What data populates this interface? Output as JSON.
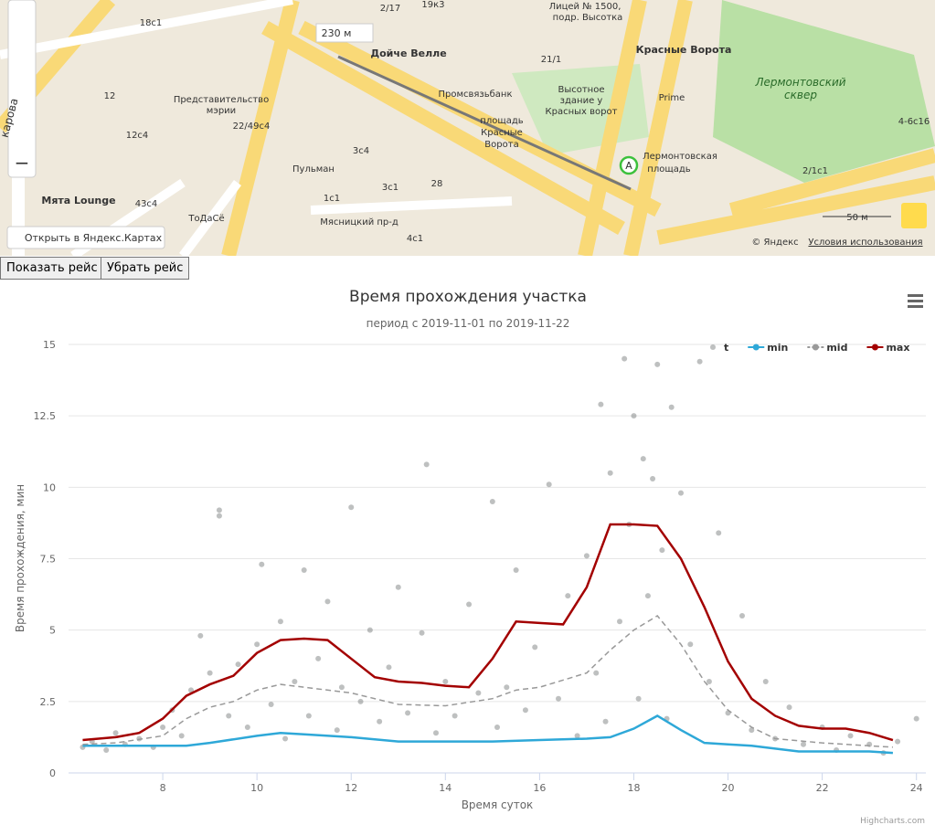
{
  "map": {
    "labels": [
      "Лицей № 1500,",
      "подр. Высотка",
      "Красные Ворота",
      "Дойче Велле",
      "Промсвязьбанк",
      "Представительство",
      "мэрии",
      "Высотное",
      "здание у",
      "Красных ворот",
      "Prime",
      "Лермонтовский",
      "сквер",
      "площадь",
      "Красные",
      "Ворота",
      "Лермонтовская",
      "площадь",
      "Пульман",
      "Мята Lounge",
      "ТоДаСё",
      "Мясницкий пр-д",
      "18с1",
      "12",
      "12с4",
      "22/49с4",
      "3с4",
      "1с1",
      "3с1",
      "28",
      "4с1",
      "43с4",
      "2/17",
      "19к3",
      "21/1",
      "4-6с16",
      "2/1с1",
      "карова"
    ],
    "distance": "230 м",
    "point": "A",
    "scale": "50 м",
    "open_link": "Открыть в Яндекс.Картах",
    "copyright": "© Яндекс",
    "terms": "Условия использования"
  },
  "buttons": [
    "Показать рейс",
    "Убрать рейс"
  ],
  "chart_data": {
    "type": "scatter",
    "title": "Время прохождения участка",
    "subtitle": "период с 2019-11-01 по 2019-11-22",
    "x_label": "Время суток",
    "y_label": "Время прохождения, мин",
    "credits": "Highcharts.com",
    "xlim": [
      6,
      24.2
    ],
    "xticks": [
      8,
      10,
      12,
      14,
      16,
      18,
      20,
      22,
      24
    ],
    "ylim": [
      0,
      15
    ],
    "yticks": [
      0,
      2.5,
      5,
      7.5,
      10,
      12.5,
      15
    ],
    "grid": true,
    "legend": "top-right",
    "series": [
      {
        "name": "t",
        "type": "scatter",
        "color": "rgba(70,75,75,0.35)",
        "x": [
          6.3,
          6.5,
          6.8,
          7.0,
          7.2,
          7.5,
          7.8,
          8.0,
          8.2,
          8.4,
          8.6,
          8.8,
          9.0,
          9.2,
          9.2,
          9.4,
          9.6,
          9.8,
          10.0,
          10.1,
          10.3,
          10.5,
          10.6,
          10.8,
          11.0,
          11.1,
          11.3,
          11.5,
          11.7,
          11.8,
          12.0,
          12.2,
          12.4,
          12.6,
          12.8,
          13.0,
          13.2,
          13.5,
          13.6,
          13.8,
          14.0,
          14.2,
          14.5,
          14.7,
          15.0,
          15.1,
          15.3,
          15.5,
          15.7,
          15.9,
          16.2,
          16.4,
          16.6,
          16.8,
          17.0,
          17.2,
          17.3,
          17.4,
          17.5,
          17.7,
          17.8,
          17.9,
          18.0,
          18.1,
          18.2,
          18.3,
          18.4,
          18.5,
          18.6,
          18.7,
          18.8,
          19.0,
          19.2,
          19.4,
          19.6,
          19.8,
          20.0,
          20.3,
          20.5,
          20.8,
          21.0,
          21.3,
          21.6,
          22.0,
          22.3,
          22.6,
          23.0,
          23.3,
          23.6,
          24.0
        ],
        "values": [
          0.9,
          1.1,
          0.8,
          1.4,
          1.0,
          1.2,
          0.9,
          1.6,
          2.2,
          1.3,
          2.9,
          4.8,
          3.5,
          9.0,
          9.2,
          2.0,
          3.8,
          1.6,
          4.5,
          7.3,
          2.4,
          5.3,
          1.2,
          3.2,
          7.1,
          2.0,
          4.0,
          6.0,
          1.5,
          3.0,
          9.3,
          2.5,
          5.0,
          1.8,
          3.7,
          6.5,
          2.1,
          4.9,
          10.8,
          1.4,
          3.2,
          2.0,
          5.9,
          2.8,
          9.5,
          1.6,
          3.0,
          7.1,
          2.2,
          4.4,
          10.1,
          2.6,
          6.2,
          1.3,
          7.6,
          3.5,
          12.9,
          1.8,
          10.5,
          5.3,
          14.5,
          8.7,
          12.5,
          2.6,
          11.0,
          6.2,
          10.3,
          14.3,
          7.8,
          1.9,
          12.8,
          9.8,
          4.5,
          14.4,
          3.2,
          8.4,
          2.1,
          5.5,
          1.5,
          3.2,
          1.2,
          2.3,
          1.0,
          1.6,
          0.8,
          1.3,
          1.0,
          0.7,
          1.1,
          1.9
        ]
      },
      {
        "name": "min",
        "type": "line",
        "color": "#2ea8d8",
        "x": [
          6.3,
          7,
          8,
          8.5,
          9,
          10,
          10.5,
          11,
          12,
          13,
          14,
          15,
          16,
          17,
          17.5,
          18,
          18.5,
          19,
          19.5,
          20,
          20.5,
          21,
          21.5,
          22,
          23,
          23.5
        ],
        "values": [
          0.95,
          0.95,
          0.95,
          0.95,
          1.05,
          1.3,
          1.4,
          1.35,
          1.25,
          1.1,
          1.1,
          1.1,
          1.15,
          1.2,
          1.25,
          1.55,
          2.0,
          1.5,
          1.05,
          1.0,
          0.95,
          0.85,
          0.75,
          0.75,
          0.75,
          0.7
        ]
      },
      {
        "name": "mid",
        "type": "line",
        "dashed": true,
        "color": "#999999",
        "x": [
          6.3,
          7,
          8,
          8.5,
          9,
          9.5,
          10,
          10.5,
          11,
          12,
          13,
          14,
          15,
          15.5,
          16,
          17,
          17.5,
          18,
          18.5,
          19,
          19.5,
          20,
          20.5,
          21,
          22,
          23,
          23.5
        ],
        "values": [
          1.0,
          1.05,
          1.3,
          1.9,
          2.3,
          2.5,
          2.9,
          3.1,
          3.0,
          2.8,
          2.4,
          2.35,
          2.6,
          2.9,
          3.0,
          3.5,
          4.3,
          5.0,
          5.5,
          4.5,
          3.2,
          2.2,
          1.6,
          1.2,
          1.05,
          0.95,
          0.9
        ]
      },
      {
        "name": "max",
        "type": "line",
        "color": "#a30000",
        "x": [
          6.3,
          7,
          7.5,
          8,
          8.5,
          9,
          9.5,
          10,
          10.5,
          11,
          11.5,
          12,
          12.5,
          13,
          13.5,
          14,
          14.5,
          15,
          15.5,
          16,
          16.5,
          17,
          17.5,
          18,
          18.5,
          19,
          19.5,
          20,
          20.5,
          21,
          21.5,
          22,
          22.5,
          23,
          23.5
        ],
        "values": [
          1.15,
          1.25,
          1.4,
          1.9,
          2.7,
          3.1,
          3.4,
          4.2,
          4.65,
          4.7,
          4.65,
          4.0,
          3.35,
          3.2,
          3.15,
          3.05,
          3.0,
          4.0,
          5.3,
          5.25,
          5.2,
          6.5,
          8.7,
          8.7,
          8.65,
          7.5,
          5.8,
          3.9,
          2.6,
          2.0,
          1.65,
          1.55,
          1.55,
          1.4,
          1.15
        ]
      }
    ]
  }
}
